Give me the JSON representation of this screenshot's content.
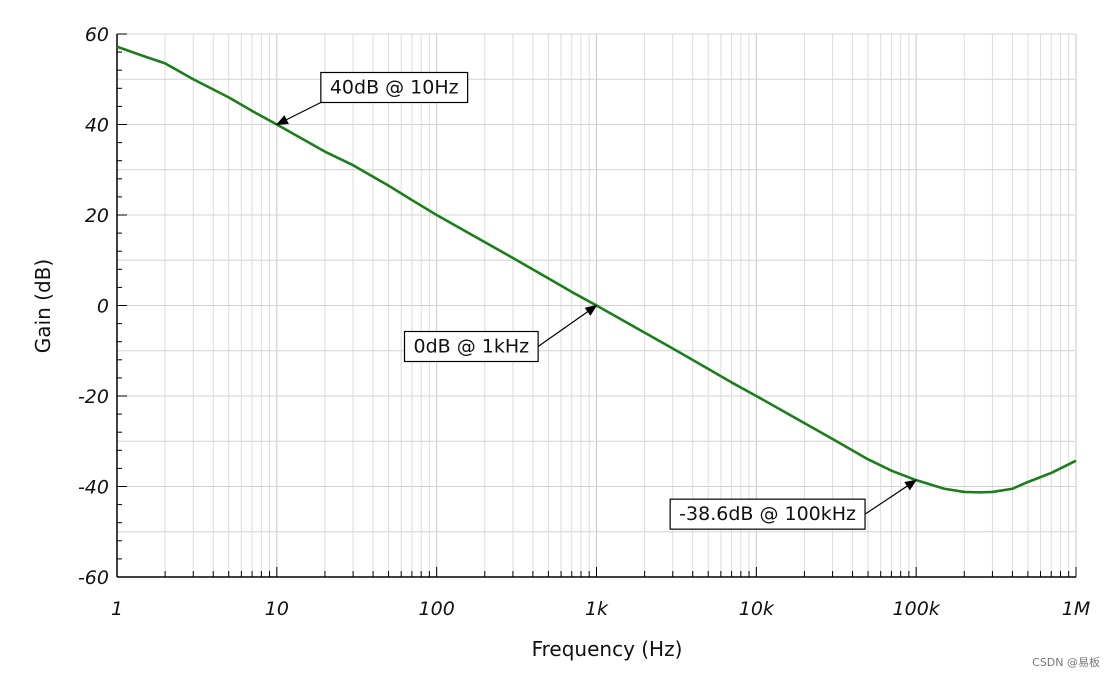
{
  "chart_data": {
    "type": "line",
    "xscale": "log",
    "xlim": [
      1,
      1000000
    ],
    "ylim": [
      -60,
      60
    ],
    "grid": true,
    "xlabel": "Frequency (Hz)",
    "ylabel": "Gain (dB)",
    "x_ticks": [
      {
        "value": 1,
        "label": "1"
      },
      {
        "value": 10,
        "label": "10"
      },
      {
        "value": 100,
        "label": "100"
      },
      {
        "value": 1000,
        "label": "1k"
      },
      {
        "value": 10000,
        "label": "10k"
      },
      {
        "value": 100000,
        "label": "100k"
      },
      {
        "value": 1000000,
        "label": "1M"
      }
    ],
    "y_ticks": [
      {
        "value": 60,
        "label": "60"
      },
      {
        "value": 40,
        "label": "40"
      },
      {
        "value": 20,
        "label": "20"
      },
      {
        "value": 0,
        "label": "0"
      },
      {
        "value": -20,
        "label": "-20"
      },
      {
        "value": -40,
        "label": "-40"
      },
      {
        "value": -60,
        "label": "-60"
      }
    ],
    "series": [
      {
        "color": "#1a7f1a",
        "x": [
          1,
          1.5,
          2,
          3,
          5,
          7,
          10,
          15,
          20,
          30,
          50,
          70,
          100,
          150,
          200,
          300,
          500,
          700,
          1000,
          1500,
          2000,
          3000,
          5000,
          7000,
          10000,
          15000,
          20000,
          30000,
          50000,
          70000,
          100000,
          150000,
          200000,
          250000,
          300000,
          400000,
          500000,
          700000,
          1000000
        ],
        "y": [
          57.2,
          55.0,
          53.5,
          50.0,
          46.0,
          43.0,
          40.0,
          36.5,
          34.0,
          31.0,
          26.5,
          23.3,
          20.0,
          16.5,
          14.0,
          10.5,
          6.0,
          3.0,
          0.0,
          -3.5,
          -6.0,
          -9.5,
          -14.0,
          -17.0,
          -20.0,
          -23.5,
          -26.0,
          -29.5,
          -34.0,
          -36.5,
          -38.6,
          -40.5,
          -41.2,
          -41.3,
          -41.2,
          -40.5,
          -39.0,
          -37.0,
          -34.3
        ]
      }
    ],
    "annotations": [
      {
        "text": "40dB @ 10Hz",
        "x": 10,
        "y": 40
      },
      {
        "text": "0dB @ 1kHz",
        "x": 1000,
        "y": 0
      },
      {
        "text": "-38.6dB @ 100kHz",
        "x": 100000,
        "y": -38.6
      }
    ]
  },
  "watermark": "CSDN @易板"
}
